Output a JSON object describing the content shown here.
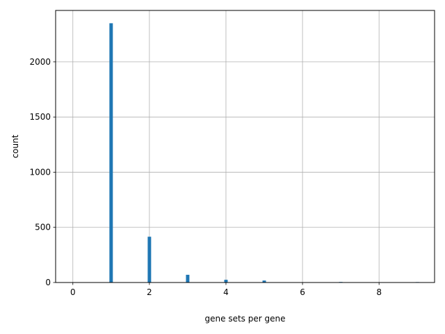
{
  "chart_data": {
    "type": "bar",
    "title": "",
    "xlabel": "gene sets per gene",
    "ylabel": "count",
    "xlim": [
      -0.45,
      9.45
    ],
    "ylim": [
      0,
      2466
    ],
    "x_ticks": [
      0,
      2,
      4,
      6,
      8
    ],
    "y_ticks": [
      0,
      500,
      1000,
      1500,
      2000
    ],
    "x_tick_labels": [
      "0",
      "2",
      "4",
      "6",
      "8"
    ],
    "y_tick_labels": [
      "0",
      "500",
      "1000",
      "1500",
      "2000"
    ],
    "grid": true,
    "bar_width": 0.09,
    "series": [
      {
        "color": "#1f77b4",
        "x": [
          0,
          1,
          2,
          3,
          4,
          5,
          6,
          7,
          8,
          9
        ],
        "values": [
          0,
          2350,
          415,
          70,
          25,
          18,
          0,
          5,
          3,
          4
        ]
      }
    ]
  }
}
